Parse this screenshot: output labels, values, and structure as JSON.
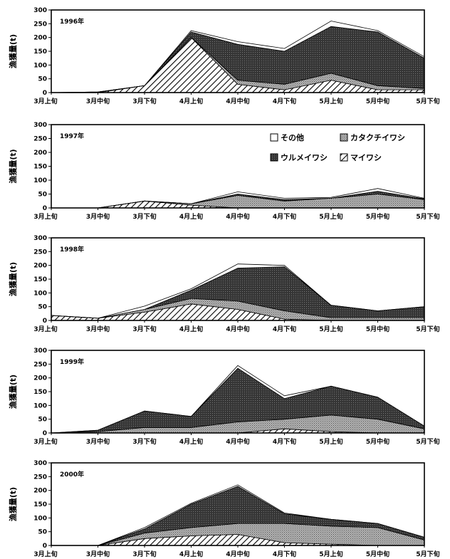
{
  "chart_data": [
    {
      "type": "area",
      "stacked": true,
      "year_label": "1996年",
      "ylabel": "漁獲量(t)",
      "categories": [
        "3月上旬",
        "3月中旬",
        "3月下旬",
        "4月上旬",
        "4月中旬",
        "4月下旬",
        "5月上旬",
        "5月中旬",
        "5月下旬"
      ],
      "ylim": [
        0,
        300
      ],
      "yticks": [
        0,
        50,
        100,
        150,
        200,
        250,
        300
      ],
      "series": [
        {
          "key": "maiwashi",
          "values": [
            0,
            0,
            25,
            200,
            30,
            10,
            45,
            10,
            10
          ]
        },
        {
          "key": "katakuchi",
          "values": [
            0,
            2,
            0,
            0,
            15,
            20,
            25,
            15,
            5
          ]
        },
        {
          "key": "urume",
          "values": [
            0,
            0,
            0,
            20,
            130,
            120,
            170,
            195,
            110
          ]
        },
        {
          "key": "other",
          "values": [
            0,
            0,
            0,
            5,
            10,
            10,
            20,
            5,
            5
          ]
        }
      ]
    },
    {
      "type": "area",
      "stacked": true,
      "year_label": "1997年",
      "ylabel": "漁獲量(t)",
      "categories": [
        "3月上旬",
        "3月中旬",
        "3月下旬",
        "4月上旬",
        "4月中旬",
        "4月下旬",
        "5月上旬",
        "5月中旬",
        "5月下旬"
      ],
      "ylim": [
        0,
        300
      ],
      "yticks": [
        0,
        50,
        100,
        150,
        200,
        250,
        300
      ],
      "series": [
        {
          "key": "maiwashi",
          "values": [
            0,
            0,
            25,
            10,
            0,
            0,
            0,
            0,
            0
          ]
        },
        {
          "key": "katakuchi",
          "values": [
            0,
            0,
            0,
            5,
            45,
            25,
            35,
            50,
            30
          ]
        },
        {
          "key": "urume",
          "values": [
            0,
            0,
            0,
            0,
            5,
            5,
            0,
            10,
            3
          ]
        },
        {
          "key": "other",
          "values": [
            0,
            0,
            0,
            0,
            8,
            5,
            3,
            10,
            2
          ]
        }
      ]
    },
    {
      "type": "area",
      "stacked": true,
      "year_label": "1998年",
      "ylabel": "漁獲量(t)",
      "categories": [
        "3月上旬",
        "3月中旬",
        "3月下旬",
        "4月上旬",
        "4月中旬",
        "4月下旬",
        "5月上旬",
        "5月中旬",
        "5月下旬"
      ],
      "ylim": [
        0,
        300
      ],
      "yticks": [
        0,
        50,
        100,
        150,
        200,
        250,
        300
      ],
      "series": [
        {
          "key": "maiwashi",
          "values": [
            18,
            8,
            30,
            60,
            40,
            5,
            0,
            0,
            0
          ]
        },
        {
          "key": "katakuchi",
          "values": [
            0,
            0,
            10,
            20,
            30,
            30,
            10,
            10,
            10
          ]
        },
        {
          "key": "urume",
          "values": [
            0,
            0,
            0,
            30,
            120,
            160,
            45,
            25,
            40
          ]
        },
        {
          "key": "other",
          "values": [
            0,
            0,
            12,
            5,
            15,
            5,
            0,
            0,
            0
          ]
        }
      ]
    },
    {
      "type": "area",
      "stacked": true,
      "year_label": "1999年",
      "ylabel": "漁獲量(t)",
      "categories": [
        "3月上旬",
        "3月中旬",
        "3月下旬",
        "4月上旬",
        "4月中旬",
        "4月下旬",
        "5月上旬",
        "5月中旬",
        "5月下旬"
      ],
      "ylim": [
        0,
        300
      ],
      "yticks": [
        0,
        50,
        100,
        150,
        200,
        250,
        300
      ],
      "series": [
        {
          "key": "maiwashi",
          "values": [
            0,
            0,
            0,
            0,
            0,
            15,
            5,
            0,
            0
          ]
        },
        {
          "key": "katakuchi",
          "values": [
            0,
            5,
            20,
            20,
            40,
            35,
            60,
            50,
            15
          ]
        },
        {
          "key": "urume",
          "values": [
            0,
            5,
            60,
            40,
            195,
            75,
            105,
            80,
            10
          ]
        },
        {
          "key": "other",
          "values": [
            0,
            0,
            0,
            0,
            10,
            10,
            0,
            0,
            0
          ]
        }
      ]
    },
    {
      "type": "area",
      "stacked": true,
      "year_label": "2000年",
      "ylabel": "漁獲量(t)",
      "categories": [
        "3月上旬",
        "3月中旬",
        "3月下旬",
        "4月上旬",
        "4月中旬",
        "4月下旬",
        "5月上旬",
        "5月中旬",
        "5月下旬"
      ],
      "ylim": [
        0,
        300
      ],
      "yticks": [
        0,
        50,
        100,
        150,
        200,
        250,
        300
      ],
      "series": [
        {
          "key": "maiwashi",
          "values": [
            0,
            0,
            25,
            35,
            40,
            10,
            5,
            0,
            0
          ]
        },
        {
          "key": "katakuchi",
          "values": [
            0,
            0,
            20,
            30,
            40,
            70,
            65,
            65,
            20
          ]
        },
        {
          "key": "urume",
          "values": [
            0,
            0,
            15,
            85,
            135,
            35,
            25,
            15,
            10
          ]
        },
        {
          "key": "other",
          "values": [
            0,
            0,
            5,
            3,
            5,
            3,
            0,
            0,
            0
          ]
        }
      ]
    }
  ],
  "legend": {
    "placement": "top-right of 1997 panel",
    "items": [
      {
        "key": "other",
        "label": "その他",
        "box": "□"
      },
      {
        "key": "katakuchi",
        "label": "カタクチイワシ",
        "box": "▩"
      },
      {
        "key": "urume",
        "label": "ウルメイワシ",
        "box": "■"
      },
      {
        "key": "maiwashi",
        "label": "マイワシ",
        "box": "▨"
      }
    ]
  },
  "colors": {
    "other": "#ffffff",
    "katakuchi": "#9a9a9a",
    "urume": "#2a2a2a",
    "maiwashi_hatch": "#000000",
    "axis": "#000000"
  }
}
